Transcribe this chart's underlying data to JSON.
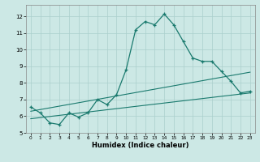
{
  "xlabel": "Humidex (Indice chaleur)",
  "xlim": [
    -0.5,
    23.5
  ],
  "ylim": [
    5,
    12.7
  ],
  "xticks": [
    0,
    1,
    2,
    3,
    4,
    5,
    6,
    7,
    8,
    9,
    10,
    11,
    12,
    13,
    14,
    15,
    16,
    17,
    18,
    19,
    20,
    21,
    22,
    23
  ],
  "yticks": [
    5,
    6,
    7,
    8,
    9,
    10,
    11,
    12
  ],
  "background_color": "#cce8e5",
  "grid_color": "#aacfcc",
  "line_color": "#1a7a6e",
  "line1_x": [
    0,
    1,
    2,
    3,
    4,
    5,
    6,
    7,
    8,
    9,
    10,
    11,
    12,
    13,
    14,
    15,
    16,
    17,
    18,
    19,
    20,
    21,
    22,
    23
  ],
  "line1_y": [
    6.55,
    6.2,
    5.6,
    5.5,
    6.2,
    5.95,
    6.2,
    7.0,
    6.7,
    7.3,
    8.8,
    11.2,
    11.7,
    11.5,
    12.15,
    11.5,
    10.5,
    9.5,
    9.3,
    9.3,
    8.7,
    8.1,
    7.4,
    7.5
  ],
  "line2_x": [
    0,
    23
  ],
  "line2_y": [
    6.3,
    8.65
  ],
  "line3_x": [
    0,
    23
  ],
  "line3_y": [
    5.85,
    7.4
  ]
}
